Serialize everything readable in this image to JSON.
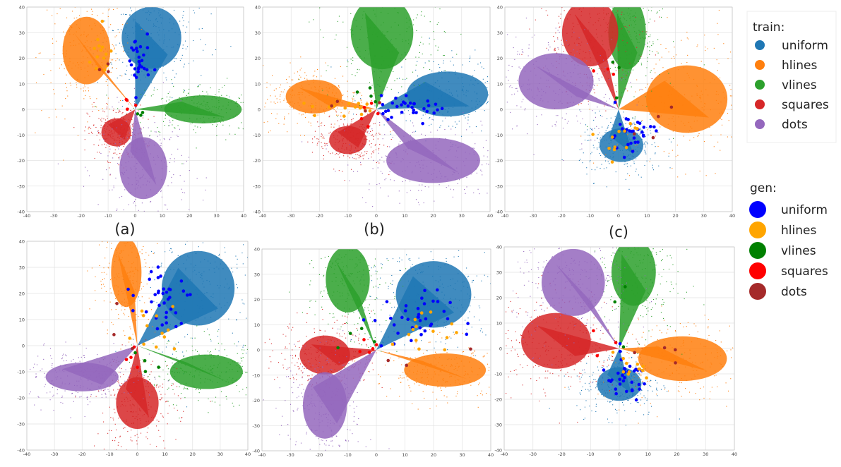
{
  "figure": {
    "captions": [
      "(a)",
      "(b)",
      "(c)"
    ]
  },
  "legend": {
    "train": {
      "title": "train:",
      "entries": [
        {
          "label": "uniform",
          "color": "#1f77b4"
        },
        {
          "label": "hlines",
          "color": "#ff7f0e"
        },
        {
          "label": "vlines",
          "color": "#2ca02c"
        },
        {
          "label": "squares",
          "color": "#d62728"
        },
        {
          "label": "dots",
          "color": "#9467bd"
        }
      ]
    },
    "gen": {
      "title": "gen:",
      "entries": [
        {
          "label": "uniform",
          "color": "#0000ff"
        },
        {
          "label": "hlines",
          "color": "#ffa500"
        },
        {
          "label": "vlines",
          "color": "#008000"
        },
        {
          "label": "squares",
          "color": "#ff0000"
        },
        {
          "label": "dots",
          "color": "#a52a2a"
        }
      ]
    }
  },
  "chart_data": [
    {
      "type": "scatter",
      "panel": "a-top",
      "xlim": [
        -40,
        40
      ],
      "ylim": [
        -40,
        40
      ],
      "xticks": [
        -40,
        -30,
        -20,
        -10,
        0,
        10,
        20,
        30,
        40
      ],
      "yticks": [
        -40,
        -30,
        -20,
        -10,
        0,
        10,
        20,
        30,
        40
      ],
      "grid": true,
      "train_clusters": [
        {
          "class": "uniform",
          "center": [
            6,
            28
          ],
          "spread": [
            10,
            11
          ]
        },
        {
          "class": "hlines",
          "center": [
            -18,
            23
          ],
          "spread": [
            8,
            12
          ]
        },
        {
          "class": "vlines",
          "center": [
            25,
            0
          ],
          "spread": [
            13,
            5
          ]
        },
        {
          "class": "squares",
          "center": [
            -7,
            -9
          ],
          "spread": [
            5,
            5
          ]
        },
        {
          "class": "dots",
          "center": [
            3,
            -23
          ],
          "spread": [
            8,
            11
          ]
        }
      ],
      "gen_points": [
        {
          "class": "uniform",
          "center": [
            1,
            18
          ],
          "spread": [
            3,
            9
          ],
          "count": 30
        },
        {
          "class": "hlines",
          "center": [
            -13,
            20
          ],
          "spread": [
            4,
            8
          ],
          "count": 14
        },
        {
          "class": "vlines",
          "center": [
            3,
            -2
          ],
          "spread": [
            3,
            1
          ],
          "count": 3
        },
        {
          "class": "squares",
          "center": [
            -3,
            2
          ],
          "spread": [
            2,
            3
          ],
          "count": 4
        },
        {
          "class": "dots",
          "center": [
            -10,
            18
          ],
          "spread": [
            3,
            4
          ],
          "count": 3
        }
      ]
    },
    {
      "type": "scatter",
      "panel": "b-top",
      "xlim": [
        -40,
        40
      ],
      "ylim": [
        -40,
        40
      ],
      "xticks": [
        -40,
        -30,
        -20,
        -10,
        0,
        10,
        20,
        30,
        40
      ],
      "yticks": [
        -40,
        -30,
        -20,
        -10,
        0,
        10,
        20,
        30,
        40
      ],
      "grid": true,
      "train_clusters": [
        {
          "class": "uniform",
          "center": [
            25,
            6
          ],
          "spread": [
            13,
            8
          ]
        },
        {
          "class": "hlines",
          "center": [
            -22,
            5
          ],
          "spread": [
            9,
            6
          ]
        },
        {
          "class": "vlines",
          "center": [
            2,
            30
          ],
          "spread": [
            10,
            13
          ]
        },
        {
          "class": "squares",
          "center": [
            -10,
            -12
          ],
          "spread": [
            6,
            5
          ]
        },
        {
          "class": "dots",
          "center": [
            20,
            -20
          ],
          "spread": [
            15,
            8
          ]
        }
      ],
      "gen_points": [
        {
          "class": "uniform",
          "center": [
            12,
            1
          ],
          "spread": [
            10,
            3
          ],
          "count": 32
        },
        {
          "class": "hlines",
          "center": [
            -10,
            1
          ],
          "spread": [
            12,
            3
          ],
          "count": 16
        },
        {
          "class": "vlines",
          "center": [
            -4,
            3
          ],
          "spread": [
            3,
            4
          ],
          "count": 4
        },
        {
          "class": "squares",
          "center": [
            -3,
            -3
          ],
          "spread": [
            3,
            4
          ],
          "count": 5
        },
        {
          "class": "dots",
          "center": [
            -6,
            0
          ],
          "spread": [
            12,
            3
          ],
          "count": 4
        }
      ]
    },
    {
      "type": "scatter",
      "panel": "c-top",
      "xlim": [
        -40,
        40
      ],
      "ylim": [
        -40,
        40
      ],
      "xticks": [
        -40,
        -30,
        -20,
        -10,
        0,
        10,
        20,
        30,
        40
      ],
      "yticks": [
        -40,
        -30,
        -20,
        -10,
        0,
        10,
        20,
        30,
        40
      ],
      "grid": true,
      "train_clusters": [
        {
          "class": "uniform",
          "center": [
            1,
            -14
          ],
          "spread": [
            7,
            6
          ]
        },
        {
          "class": "hlines",
          "center": [
            24,
            4
          ],
          "spread": [
            13,
            12
          ]
        },
        {
          "class": "vlines",
          "center": [
            3,
            30
          ],
          "spread": [
            6,
            13
          ]
        },
        {
          "class": "squares",
          "center": [
            -10,
            30
          ],
          "spread": [
            9,
            12
          ]
        },
        {
          "class": "dots",
          "center": [
            -22,
            11
          ],
          "spread": [
            12,
            10
          ]
        }
      ],
      "gen_points": [
        {
          "class": "uniform",
          "center": [
            4,
            -10
          ],
          "spread": [
            6,
            6
          ],
          "count": 30
        },
        {
          "class": "hlines",
          "center": [
            2,
            -12
          ],
          "spread": [
            8,
            6
          ],
          "count": 12
        },
        {
          "class": "vlines",
          "center": [
            0,
            20
          ],
          "spread": [
            3,
            12
          ],
          "count": 3
        },
        {
          "class": "squares",
          "center": [
            -5,
            15
          ],
          "spread": [
            5,
            10
          ],
          "count": 3
        },
        {
          "class": "dots",
          "center": [
            10,
            -5
          ],
          "spread": [
            10,
            8
          ],
          "count": 4
        }
      ]
    },
    {
      "type": "scatter",
      "panel": "a-bottom",
      "xlim": [
        -40,
        40
      ],
      "ylim": [
        -40,
        40
      ],
      "xticks": [
        -40,
        -30,
        -20,
        -10,
        0,
        10,
        20,
        30,
        40
      ],
      "yticks": [
        -40,
        -30,
        -20,
        -10,
        0,
        10,
        20,
        30,
        40
      ],
      "grid": true,
      "train_clusters": [
        {
          "class": "uniform",
          "center": [
            22,
            22
          ],
          "spread": [
            12,
            13
          ]
        },
        {
          "class": "hlines",
          "center": [
            -4,
            28
          ],
          "spread": [
            5,
            12
          ]
        },
        {
          "class": "vlines",
          "center": [
            25,
            -10
          ],
          "spread": [
            12,
            6
          ]
        },
        {
          "class": "squares",
          "center": [
            0,
            -22
          ],
          "spread": [
            7,
            9
          ]
        },
        {
          "class": "dots",
          "center": [
            -20,
            -12
          ],
          "spread": [
            12,
            5
          ]
        }
      ],
      "gen_points": [
        {
          "class": "uniform",
          "center": [
            10,
            18
          ],
          "spread": [
            7,
            10
          ],
          "count": 36
        },
        {
          "class": "hlines",
          "center": [
            8,
            10
          ],
          "spread": [
            6,
            8
          ],
          "count": 12
        },
        {
          "class": "vlines",
          "center": [
            2,
            -5
          ],
          "spread": [
            3,
            4
          ],
          "count": 4
        },
        {
          "class": "squares",
          "center": [
            -2,
            -3
          ],
          "spread": [
            3,
            5
          ],
          "count": 4
        },
        {
          "class": "dots",
          "center": [
            -5,
            10
          ],
          "spread": [
            4,
            8
          ],
          "count": 3
        }
      ]
    },
    {
      "type": "scatter",
      "panel": "b-bottom",
      "xlim": [
        -40,
        40
      ],
      "ylim": [
        -40,
        40
      ],
      "xticks": [
        -40,
        -30,
        -20,
        -10,
        0,
        10,
        20,
        30,
        40
      ],
      "yticks": [
        -40,
        -30,
        -20,
        -10,
        0,
        10,
        20,
        30,
        40
      ],
      "grid": true,
      "train_clusters": [
        {
          "class": "uniform",
          "center": [
            20,
            22
          ],
          "spread": [
            12,
            12
          ]
        },
        {
          "class": "hlines",
          "center": [
            24,
            -8
          ],
          "spread": [
            13,
            6
          ]
        },
        {
          "class": "vlines",
          "center": [
            -10,
            28
          ],
          "spread": [
            7,
            12
          ]
        },
        {
          "class": "squares",
          "center": [
            -18,
            -2
          ],
          "spread": [
            8,
            7
          ]
        },
        {
          "class": "dots",
          "center": [
            -18,
            -22
          ],
          "spread": [
            7,
            12
          ]
        }
      ],
      "gen_points": [
        {
          "class": "uniform",
          "center": [
            12,
            12
          ],
          "spread": [
            10,
            8
          ],
          "count": 36
        },
        {
          "class": "hlines",
          "center": [
            15,
            5
          ],
          "spread": [
            10,
            8
          ],
          "count": 14
        },
        {
          "class": "vlines",
          "center": [
            -8,
            5
          ],
          "spread": [
            4,
            6
          ],
          "count": 4
        },
        {
          "class": "squares",
          "center": [
            -4,
            1
          ],
          "spread": [
            4,
            3
          ],
          "count": 5
        },
        {
          "class": "dots",
          "center": [
            20,
            -3
          ],
          "spread": [
            20,
            4
          ],
          "count": 4
        }
      ]
    },
    {
      "type": "scatter",
      "panel": "c-bottom",
      "xlim": [
        -40,
        40
      ],
      "ylim": [
        -40,
        40
      ],
      "xticks": [
        -40,
        -30,
        -20,
        -10,
        0,
        10,
        20,
        30,
        40
      ],
      "yticks": [
        -40,
        -30,
        -20,
        -10,
        0,
        10,
        20,
        30,
        40
      ],
      "grid": true,
      "train_clusters": [
        {
          "class": "uniform",
          "center": [
            0,
            -14
          ],
          "spread": [
            7,
            6
          ]
        },
        {
          "class": "hlines",
          "center": [
            22,
            -4
          ],
          "spread": [
            14,
            8
          ]
        },
        {
          "class": "vlines",
          "center": [
            5,
            30
          ],
          "spread": [
            7,
            12
          ]
        },
        {
          "class": "squares",
          "center": [
            -22,
            3
          ],
          "spread": [
            11,
            10
          ]
        },
        {
          "class": "dots",
          "center": [
            -16,
            26
          ],
          "spread": [
            10,
            12
          ]
        }
      ],
      "gen_points": [
        {
          "class": "uniform",
          "center": [
            2,
            -12
          ],
          "spread": [
            6,
            6
          ],
          "count": 32
        },
        {
          "class": "hlines",
          "center": [
            4,
            -10
          ],
          "spread": [
            7,
            6
          ],
          "count": 12
        },
        {
          "class": "vlines",
          "center": [
            0,
            15
          ],
          "spread": [
            3,
            14
          ],
          "count": 3
        },
        {
          "class": "squares",
          "center": [
            -6,
            0
          ],
          "spread": [
            6,
            6
          ],
          "count": 3
        },
        {
          "class": "dots",
          "center": [
            12,
            -5
          ],
          "spread": [
            12,
            6
          ],
          "count": 4
        }
      ]
    }
  ]
}
